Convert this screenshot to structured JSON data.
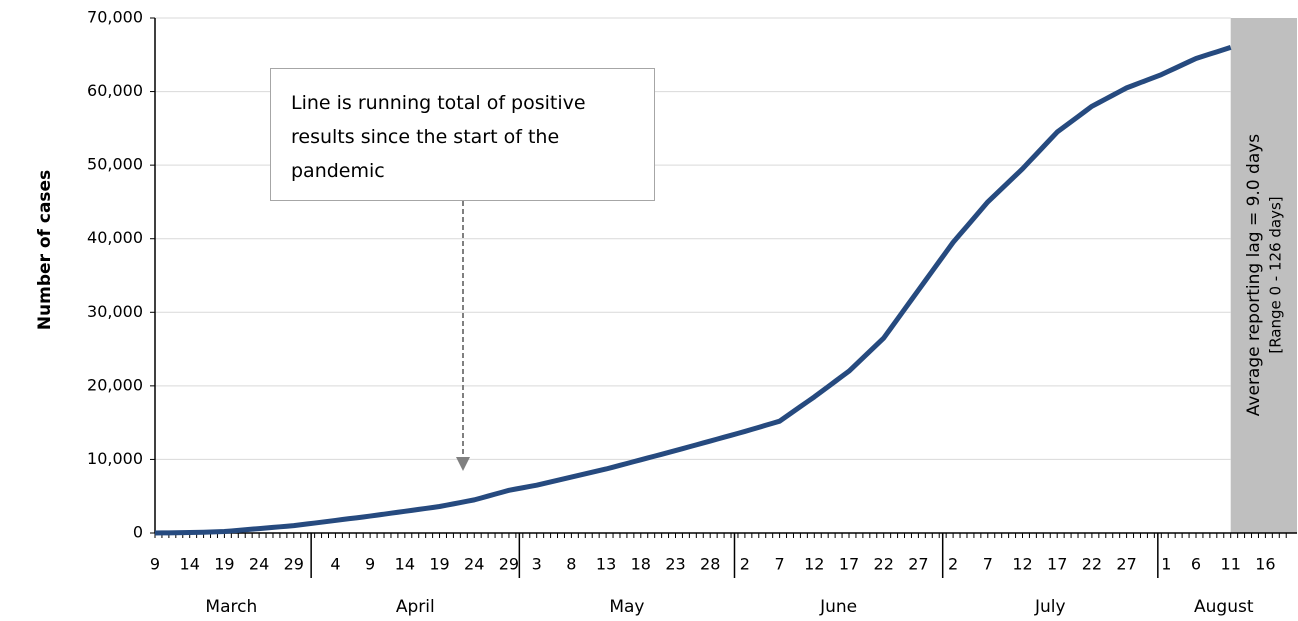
{
  "chart_data": {
    "type": "line",
    "y_axis_label": "Number of cases",
    "annotation": "Line is running total of positive results since the start of the pandemic",
    "shaded_note": "Average reporting lag = 9.0 days",
    "shaded_subnote": "[Range 0 - 126 days]",
    "months": [
      {
        "name": "March",
        "days": [
          "9",
          null,
          null,
          null,
          null,
          "14",
          null,
          null,
          null,
          null,
          "19",
          null,
          null,
          null,
          null,
          "24",
          null,
          null,
          null,
          null,
          "29",
          null,
          null
        ]
      },
      {
        "name": "April",
        "days": [
          null,
          null,
          null,
          "4",
          null,
          null,
          null,
          null,
          "9",
          null,
          null,
          null,
          null,
          "14",
          null,
          null,
          null,
          null,
          "19",
          null,
          null,
          null,
          null,
          "24",
          null,
          null,
          null,
          null,
          "29",
          null
        ]
      },
      {
        "name": "May",
        "days": [
          null,
          null,
          "3",
          null,
          null,
          null,
          null,
          "8",
          null,
          null,
          null,
          null,
          "13",
          null,
          null,
          null,
          null,
          "18",
          null,
          null,
          null,
          null,
          "23",
          null,
          null,
          null,
          null,
          "28",
          null,
          null,
          null
        ]
      },
      {
        "name": "June",
        "days": [
          null,
          "2",
          null,
          null,
          null,
          null,
          "7",
          null,
          null,
          null,
          null,
          "12",
          null,
          null,
          null,
          null,
          "17",
          null,
          null,
          null,
          null,
          "22",
          null,
          null,
          null,
          null,
          "27",
          null,
          null,
          null
        ]
      },
      {
        "name": "July",
        "days": [
          null,
          "2",
          null,
          null,
          null,
          null,
          "7",
          null,
          null,
          null,
          null,
          "12",
          null,
          null,
          null,
          null,
          "17",
          null,
          null,
          null,
          null,
          "22",
          null,
          null,
          null,
          null,
          "27",
          null,
          null,
          null,
          null
        ]
      },
      {
        "name": "August",
        "days": [
          "1",
          null,
          null,
          null,
          null,
          "6",
          null,
          null,
          null,
          null,
          "11",
          null,
          null,
          null,
          null,
          "16",
          null,
          null,
          null
        ]
      }
    ],
    "series": [
      {
        "color": "#264a7f",
        "values": [
          0,
          10,
          20,
          30,
          50,
          70,
          90,
          110,
          140,
          170,
          200,
          280,
          360,
          440,
          520,
          600,
          680,
          760,
          840,
          920,
          1000,
          1120,
          1240,
          1350,
          1470,
          1590,
          1710,
          1830,
          1950,
          2060,
          2180,
          2300,
          2430,
          2560,
          2690,
          2820,
          2950,
          3080,
          3210,
          3340,
          3470,
          3600,
          3780,
          3960,
          4140,
          4320,
          4500,
          4760,
          5020,
          5280,
          5540,
          5800,
          5980,
          6150,
          6330,
          6500,
          6720,
          6940,
          7160,
          7380,
          7600,
          7820,
          8040,
          8260,
          8480,
          8700,
          8950,
          9200,
          9450,
          9700,
          9950,
          10200,
          10450,
          10700,
          10950,
          11200,
          11460,
          11720,
          11980,
          12240,
          12500,
          12760,
          13020,
          13280,
          13540,
          13800,
          14080,
          14360,
          14640,
          14920,
          15200,
          15860,
          16520,
          17180,
          17840,
          18500,
          19200,
          19900,
          20600,
          21300,
          22000,
          22900,
          23800,
          24700,
          25600,
          26500,
          27800,
          29100,
          30400,
          31700,
          33000,
          34300,
          35600,
          36900,
          38200,
          39500,
          40600,
          41700,
          42800,
          43900,
          45000,
          45900,
          46800,
          47700,
          48600,
          49500,
          50500,
          51500,
          52500,
          53500,
          54500,
          55200,
          55900,
          56600,
          57300,
          58000,
          58500,
          59000,
          59500,
          60000,
          60500,
          60860,
          61220,
          61580,
          61940,
          62300,
          62740,
          63180,
          63620,
          64060,
          64500,
          64800,
          65100,
          65400,
          65700,
          66000,
          null,
          null,
          null,
          null,
          null,
          null,
          null,
          null
        ]
      }
    ],
    "ylim": [
      0,
      70000
    ],
    "yticks": [
      {
        "value": 0,
        "label": "0"
      },
      {
        "value": 10000,
        "label": "10,000"
      },
      {
        "value": 20000,
        "label": "20,000"
      },
      {
        "value": 30000,
        "label": "30,000"
      },
      {
        "value": 40000,
        "label": "40,000"
      },
      {
        "value": 50000,
        "label": "50,000"
      },
      {
        "value": 60000,
        "label": "60,000"
      },
      {
        "value": 70000,
        "label": "70,000"
      }
    ],
    "grid": true
  }
}
